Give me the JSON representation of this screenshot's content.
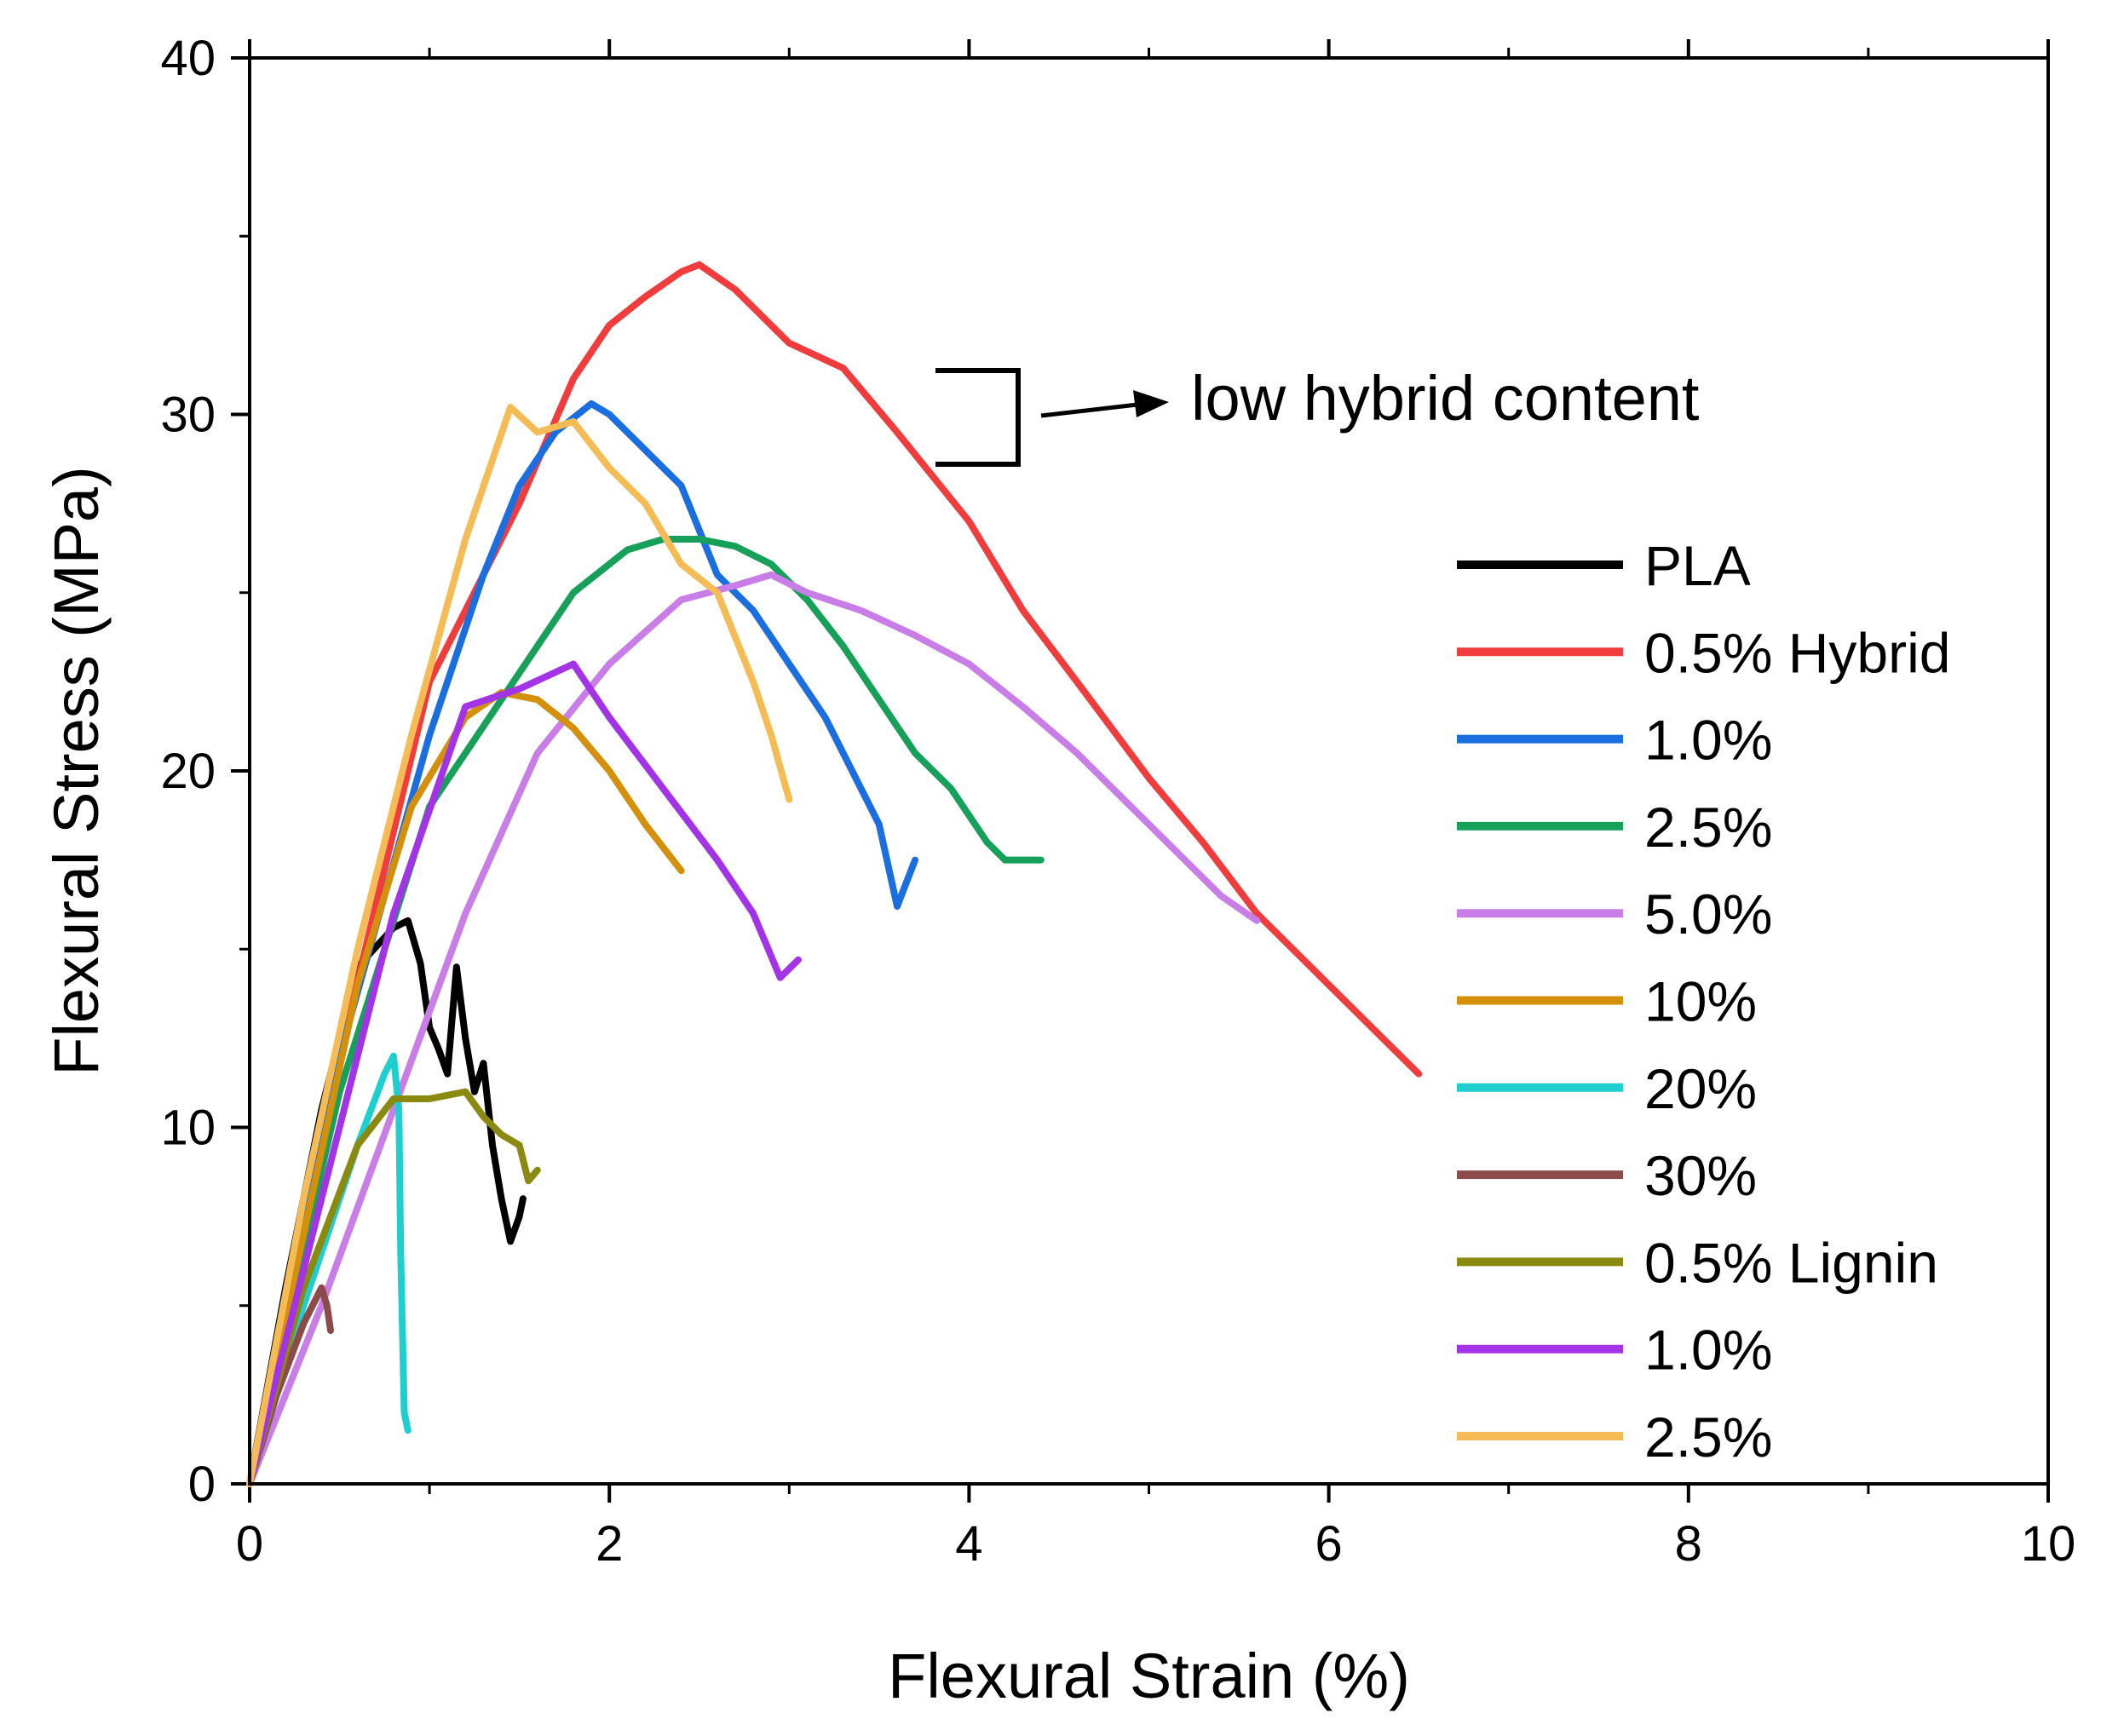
{
  "chart_data": {
    "type": "line",
    "title": "",
    "xlabel": "Flexural Strain (%)",
    "ylabel": "Flexural Stress (MPa)",
    "xlim": [
      0,
      10
    ],
    "ylim": [
      0,
      40
    ],
    "xticks": [
      "0",
      "2",
      "4",
      "6",
      "8",
      "10"
    ],
    "yticks": [
      "0",
      "10",
      "20",
      "30",
      "40"
    ],
    "grid": false,
    "legend_position": "right",
    "annotation": "low hybrid content",
    "series": [
      {
        "name": "PLA",
        "color": "#000000",
        "x": [
          0,
          0.2,
          0.4,
          0.6,
          0.8,
          0.88,
          0.95,
          1.0,
          1.05,
          1.1,
          1.15,
          1.2,
          1.25,
          1.3,
          1.35,
          1.4,
          1.45,
          1.5,
          1.52
        ],
        "y": [
          0,
          5.5,
          10.5,
          14.5,
          15.6,
          15.8,
          14.6,
          12.8,
          12.2,
          11.5,
          14.5,
          12.5,
          11.0,
          11.8,
          9.5,
          8.0,
          6.8,
          7.5,
          8.0
        ]
      },
      {
        "name": "0.5% Hybrid",
        "color": "#f03c3c",
        "x": [
          0,
          0.5,
          1.0,
          1.5,
          1.8,
          2.0,
          2.2,
          2.4,
          2.5,
          2.7,
          3.0,
          3.3,
          3.6,
          4.0,
          4.3,
          4.6,
          5.0,
          5.3,
          5.6,
          6.0,
          6.3,
          6.5
        ],
        "y": [
          0,
          12,
          22.5,
          27.5,
          31,
          32.5,
          33.3,
          34.0,
          34.2,
          33.5,
          32.0,
          31.3,
          29.5,
          27.0,
          24.5,
          22.5,
          19.8,
          18.0,
          16.0,
          14.0,
          12.5,
          11.5
        ]
      },
      {
        "name": "1.0%",
        "color": "#1a6ee0",
        "x": [
          0,
          0.5,
          1.0,
          1.3,
          1.5,
          1.7,
          1.9,
          2.0,
          2.2,
          2.4,
          2.6,
          2.8,
          3.0,
          3.2,
          3.4,
          3.5,
          3.6,
          3.7
        ],
        "y": [
          0,
          12,
          21,
          25.5,
          28,
          29.5,
          30.3,
          30.0,
          29.0,
          28.0,
          25.5,
          24.5,
          23.0,
          21.5,
          19.5,
          18.5,
          16.2,
          17.5
        ]
      },
      {
        "name": "2.5%",
        "color": "#17a05a",
        "x": [
          0,
          0.5,
          1.0,
          1.4,
          1.8,
          2.1,
          2.3,
          2.5,
          2.7,
          2.9,
          3.1,
          3.3,
          3.5,
          3.7,
          3.9,
          4.1,
          4.2,
          4.4
        ],
        "y": [
          0,
          11,
          19,
          22,
          25,
          26.2,
          26.5,
          26.5,
          26.3,
          25.8,
          24.8,
          23.5,
          22.0,
          20.5,
          19.5,
          18.0,
          17.5,
          17.5
        ]
      },
      {
        "name": "5.0%",
        "color": "#c87ee6",
        "x": [
          0,
          0.4,
          0.8,
          1.2,
          1.6,
          2.0,
          2.4,
          2.7,
          2.9,
          3.1,
          3.4,
          3.7,
          4.0,
          4.3,
          4.6,
          4.9,
          5.2,
          5.4,
          5.6
        ],
        "y": [
          0,
          5,
          10.5,
          16,
          20.5,
          23,
          24.8,
          25.2,
          25.5,
          25.0,
          24.5,
          23.8,
          23.0,
          21.8,
          20.5,
          19.0,
          17.5,
          16.5,
          15.8
        ]
      },
      {
        "name": "10%",
        "color": "#d4900a",
        "x": [
          0,
          0.3,
          0.6,
          0.9,
          1.2,
          1.4,
          1.6,
          1.8,
          2.0,
          2.2,
          2.4
        ],
        "y": [
          0,
          7,
          14,
          19,
          21.5,
          22.2,
          22.0,
          21.2,
          20.0,
          18.5,
          17.2
        ]
      },
      {
        "name": "20%",
        "color": "#1ecfcf",
        "x": [
          0,
          0.3,
          0.6,
          0.75,
          0.8,
          0.83,
          0.84,
          0.86,
          0.88
        ],
        "y": [
          0,
          5,
          9.5,
          11.5,
          12.0,
          10.5,
          6.5,
          2.0,
          1.5
        ]
      },
      {
        "name": "30%",
        "color": "#8c4a4a",
        "x": [
          0,
          0.15,
          0.3,
          0.4,
          0.43,
          0.45
        ],
        "y": [
          0,
          2.5,
          4.5,
          5.5,
          5.0,
          4.3
        ]
      },
      {
        "name": "0.5% Lignin",
        "color": "#8a8a10",
        "x": [
          0,
          0.3,
          0.6,
          0.8,
          1.0,
          1.2,
          1.3,
          1.4,
          1.5,
          1.55,
          1.6
        ],
        "y": [
          0,
          5.5,
          9.5,
          10.8,
          10.8,
          11.0,
          10.3,
          9.8,
          9.5,
          8.5,
          8.8
        ]
      },
      {
        "name": "1.0%",
        "color": "#a333e6",
        "x": [
          0,
          0.4,
          0.8,
          1.2,
          1.5,
          1.8,
          2.0,
          2.3,
          2.6,
          2.8,
          2.95,
          3.05
        ],
        "y": [
          0,
          8,
          16,
          21.8,
          22.3,
          23.0,
          21.5,
          19.5,
          17.5,
          16.0,
          14.2,
          14.7
        ]
      },
      {
        "name": "2.5%",
        "color": "#f5bc55",
        "x": [
          0,
          0.3,
          0.6,
          0.9,
          1.2,
          1.45,
          1.6,
          1.8,
          2.0,
          2.2,
          2.4,
          2.6,
          2.8,
          2.9,
          3.0
        ],
        "y": [
          0,
          8,
          15,
          21,
          26.5,
          30.2,
          29.5,
          29.8,
          28.5,
          27.5,
          25.8,
          25.0,
          22.5,
          21.0,
          19.2
        ]
      }
    ]
  }
}
